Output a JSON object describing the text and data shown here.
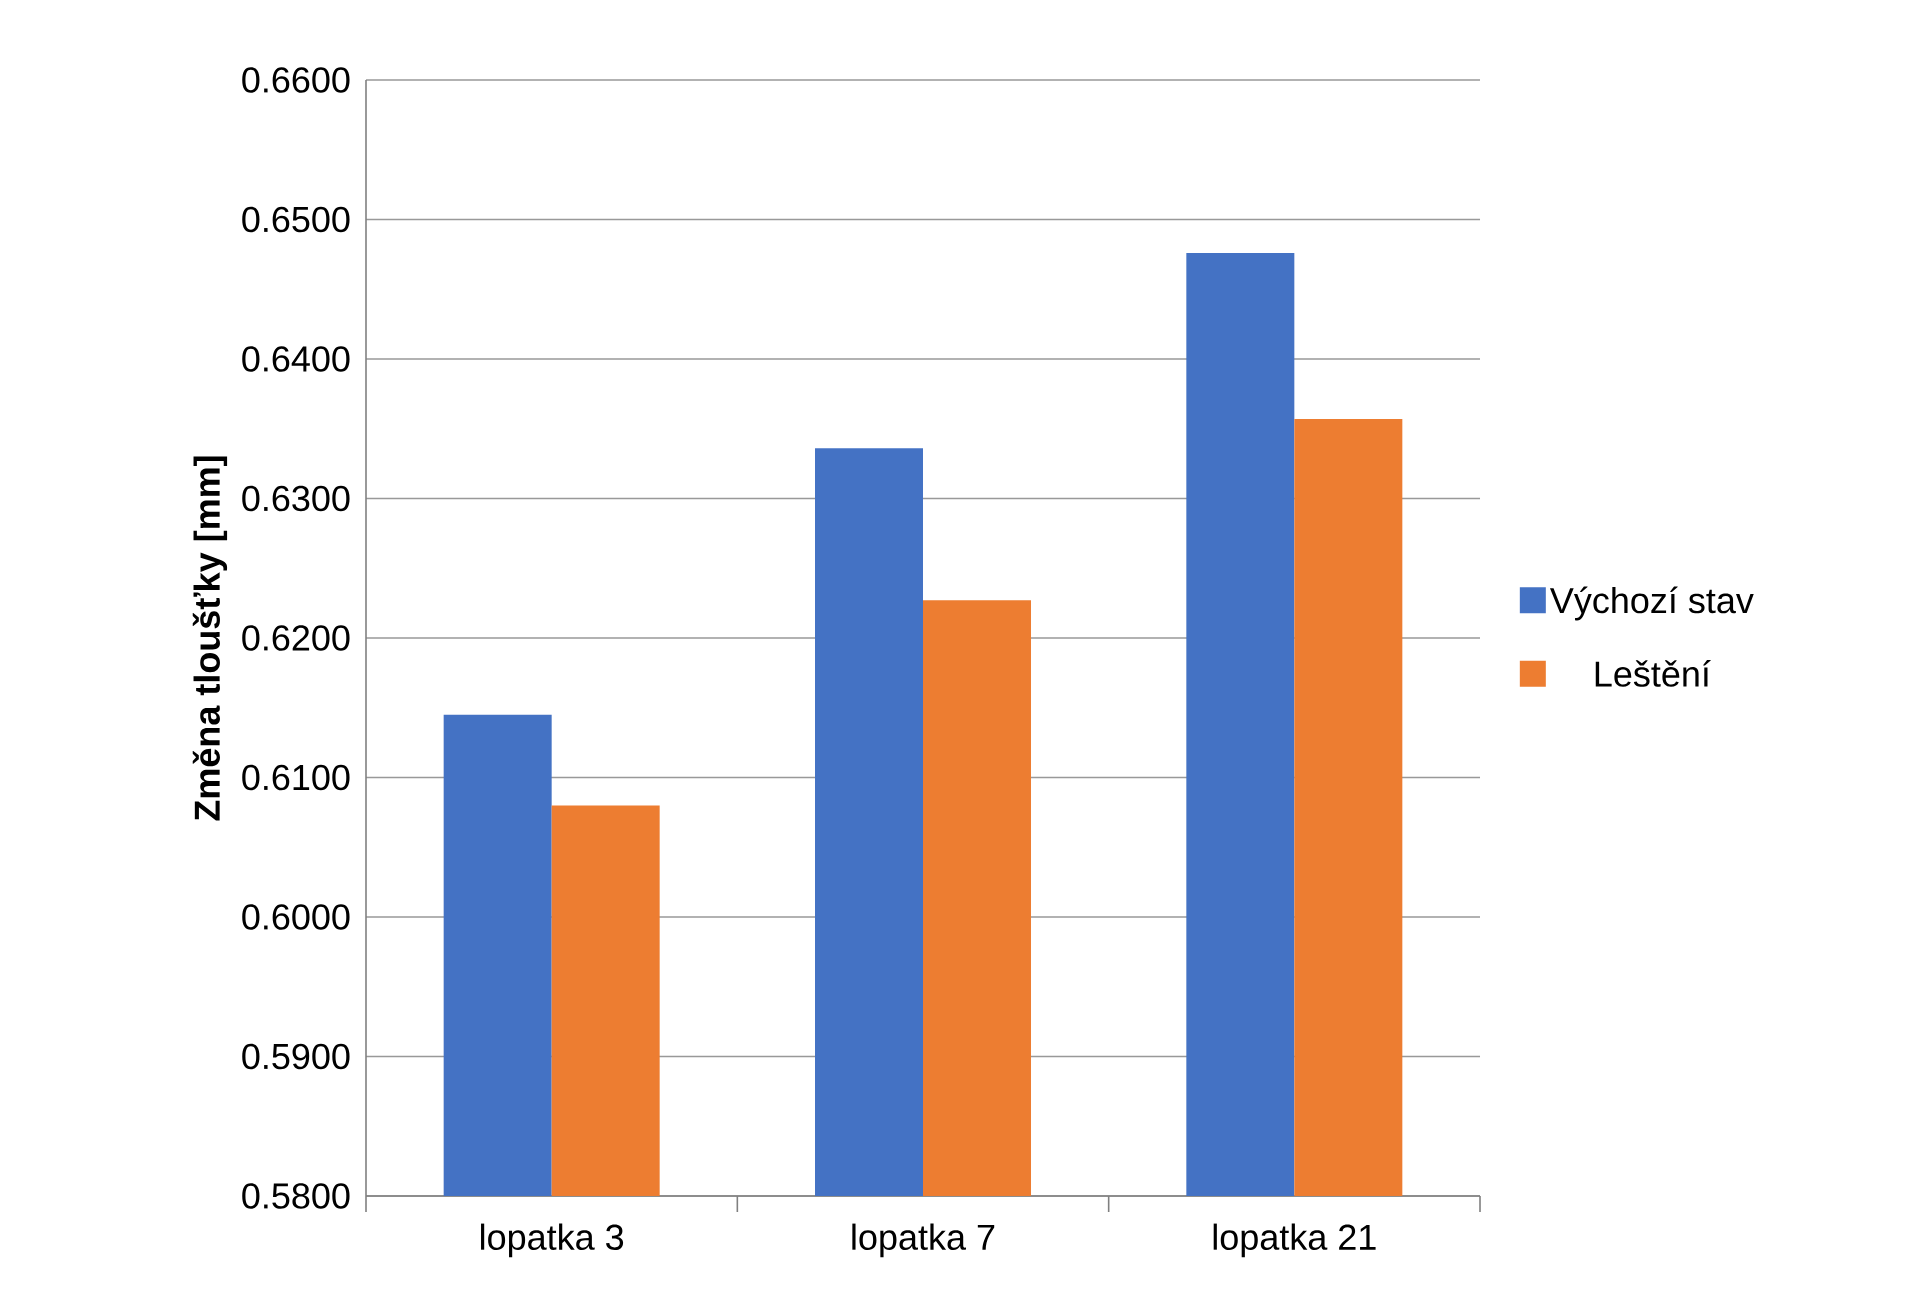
{
  "chart_data": {
    "type": "bar",
    "ylabel": "Změna tloušťky [mm]",
    "categories": [
      "lopatka 3",
      "lopatka 7",
      "lopatka 21"
    ],
    "series": [
      {
        "name": "Výchozí stav",
        "color": "#4472c4",
        "values": [
          0.6145,
          0.6336,
          0.6476
        ]
      },
      {
        "name": "Leštění",
        "color": "#ed7d31",
        "values": [
          0.608,
          0.6227,
          0.6357
        ]
      }
    ],
    "ylim": [
      0.58,
      0.66
    ],
    "yticks": [
      {
        "value": 0.58,
        "label": "0.5800"
      },
      {
        "value": 0.59,
        "label": "0.5900"
      },
      {
        "value": 0.6,
        "label": "0.6000"
      },
      {
        "value": 0.61,
        "label": "0.6100"
      },
      {
        "value": 0.62,
        "label": "0.6200"
      },
      {
        "value": 0.63,
        "label": "0.6300"
      },
      {
        "value": 0.64,
        "label": "0.6400"
      },
      {
        "value": 0.65,
        "label": "0.6500"
      },
      {
        "value": 0.66,
        "label": "0.6600"
      }
    ],
    "grid": "y",
    "legend": "right"
  }
}
